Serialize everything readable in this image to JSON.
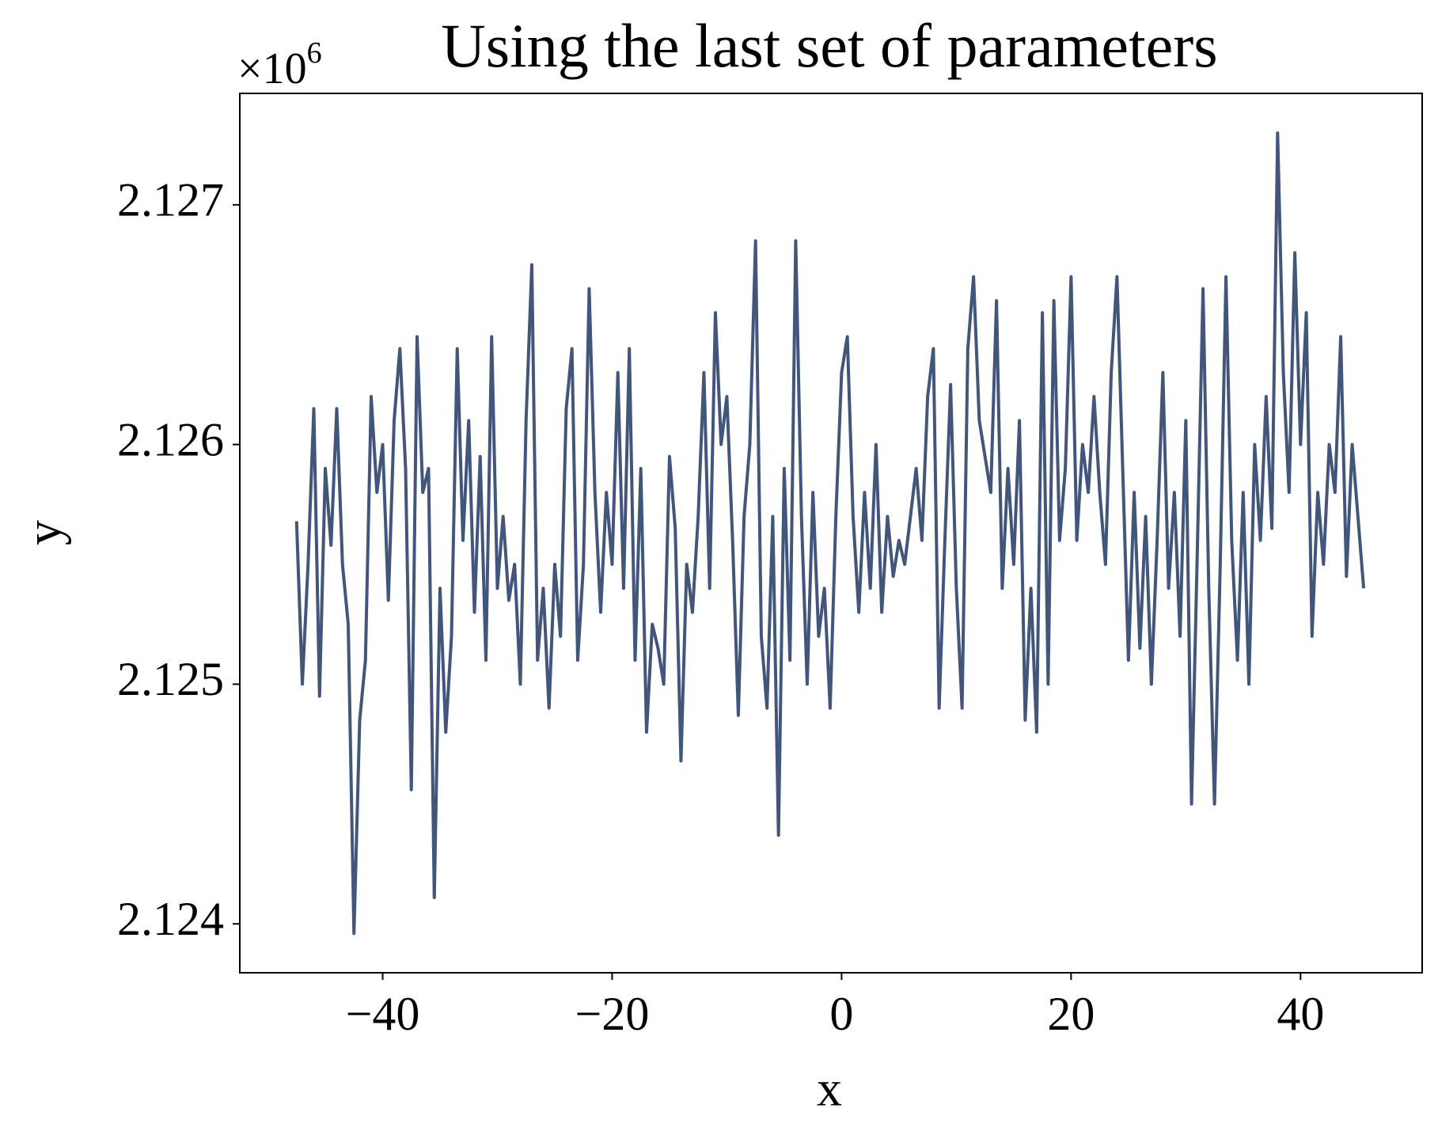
{
  "chart_data": {
    "type": "line",
    "title": "Using the last set of parameters",
    "x_label": "x",
    "y_label": "y",
    "y_offset_text": {
      "base": "×10",
      "exponent": "6"
    },
    "color": "#42557b",
    "xlim": [
      -52.45,
      50.6
    ],
    "ylim": [
      2123796,
      2127465
    ],
    "xticks": [
      {
        "value": -40,
        "label": "−40"
      },
      {
        "value": -20,
        "label": "−20"
      },
      0,
      20,
      40
    ],
    "yticks": [
      {
        "value": 2124000,
        "label": "2.124"
      },
      {
        "value": 2125000,
        "label": "2.125"
      },
      {
        "value": 2126000,
        "label": "2.126"
      },
      {
        "value": 2127000,
        "label": "2.127"
      }
    ],
    "x": [
      -47.5,
      -47,
      -46.5,
      -46,
      -45.5,
      -45,
      -44.5,
      -44,
      -43.5,
      -43,
      -42.5,
      -42,
      -41.5,
      -41,
      -40.5,
      -40,
      -39.5,
      -39,
      -38.5,
      -38,
      -37.5,
      -37,
      -36.5,
      -36,
      -35.5,
      -35,
      -34.5,
      -34,
      -33.5,
      -33,
      -32.5,
      -32,
      -31.5,
      -31,
      -30.5,
      -30,
      -29.5,
      -29,
      -28.5,
      -28,
      -27.5,
      -27,
      -26.5,
      -26,
      -25.5,
      -25,
      -24.5,
      -24,
      -23.5,
      -23,
      -22.5,
      -22,
      -21.5,
      -21,
      -20.5,
      -20,
      -19.5,
      -19,
      -18.5,
      -18,
      -17.5,
      -17,
      -16.5,
      -16,
      -15.5,
      -15,
      -14.5,
      -14,
      -13.5,
      -13,
      -12.5,
      -12,
      -11.5,
      -11,
      -10.5,
      -10,
      -9.5,
      -9,
      -8.5,
      -8,
      -7.5,
      -7,
      -6.5,
      -6,
      -5.5,
      -5,
      -4.5,
      -4,
      -3.5,
      -3,
      -2.5,
      -2,
      -1.5,
      -1,
      -0.5,
      0,
      0.5,
      1,
      1.5,
      2,
      2.5,
      3,
      3.5,
      4,
      4.5,
      5,
      5.5,
      6,
      6.5,
      7,
      7.5,
      8,
      8.5,
      9,
      9.5,
      10,
      10.5,
      11,
      11.5,
      12,
      12.5,
      13,
      13.5,
      14,
      14.5,
      15,
      15.5,
      16,
      16.5,
      17,
      17.5,
      18,
      18.5,
      19,
      19.5,
      20,
      20.5,
      21,
      21.5,
      22,
      22.5,
      23,
      23.5,
      24,
      24.5,
      25,
      25.5,
      26,
      26.5,
      27,
      27.5,
      28,
      28.5,
      29,
      29.5,
      30,
      30.5,
      31,
      31.5,
      32,
      32.5,
      33,
      33.5,
      34,
      34.5,
      35,
      35.5,
      36,
      36.5,
      37,
      37.5,
      38,
      38.5,
      39,
      39.5,
      40,
      40.5,
      41,
      41.5,
      42,
      42.5,
      43,
      43.5,
      44,
      44.5,
      45,
      45.5
    ],
    "values": [
      2125680,
      2125000,
      2125500,
      2126150,
      2124950,
      2125900,
      2125580,
      2126150,
      2125500,
      2125250,
      2123960,
      2124850,
      2125100,
      2126200,
      2125800,
      2126000,
      2125350,
      2126100,
      2126400,
      2125900,
      2124560,
      2126450,
      2125800,
      2125900,
      2124110,
      2125400,
      2124800,
      2125200,
      2126400,
      2125600,
      2126100,
      2125300,
      2125950,
      2125100,
      2126450,
      2125400,
      2125700,
      2125350,
      2125500,
      2125000,
      2126100,
      2126750,
      2125100,
      2125400,
      2124900,
      2125500,
      2125200,
      2126150,
      2126400,
      2125100,
      2125500,
      2126650,
      2125800,
      2125300,
      2125800,
      2125500,
      2126300,
      2125400,
      2126400,
      2125100,
      2125900,
      2124800,
      2125250,
      2125150,
      2125000,
      2125950,
      2125650,
      2124680,
      2125500,
      2125300,
      2125700,
      2126300,
      2125400,
      2126550,
      2126000,
      2126200,
      2125600,
      2124870,
      2125700,
      2126000,
      2126850,
      2125200,
      2124900,
      2125700,
      2124370,
      2125900,
      2125100,
      2126850,
      2125700,
      2125000,
      2125800,
      2125200,
      2125400,
      2124900,
      2125700,
      2126300,
      2126450,
      2125700,
      2125300,
      2125800,
      2125400,
      2126000,
      2125300,
      2125700,
      2125450,
      2125600,
      2125500,
      2125700,
      2125900,
      2125600,
      2126200,
      2126400,
      2124900,
      2125600,
      2126250,
      2125400,
      2124900,
      2126400,
      2126700,
      2126100,
      2125950,
      2125800,
      2126600,
      2125400,
      2125900,
      2125500,
      2126100,
      2124850,
      2125400,
      2124800,
      2126550,
      2125000,
      2126600,
      2125600,
      2125900,
      2126700,
      2125600,
      2126000,
      2125800,
      2126200,
      2125800,
      2125500,
      2126300,
      2126700,
      2125900,
      2125100,
      2125800,
      2125150,
      2125700,
      2125000,
      2125600,
      2126300,
      2125400,
      2125800,
      2125200,
      2126100,
      2124500,
      2125550,
      2126650,
      2125400,
      2124500,
      2125500,
      2126700,
      2125600,
      2125100,
      2125800,
      2125000,
      2126000,
      2125600,
      2126200,
      2125650,
      2127300,
      2126300,
      2125800,
      2126800,
      2126000,
      2126550,
      2125200,
      2125800,
      2125500,
      2126000,
      2125800,
      2126450,
      2125450,
      2126000,
      2125700,
      2125400
    ]
  }
}
